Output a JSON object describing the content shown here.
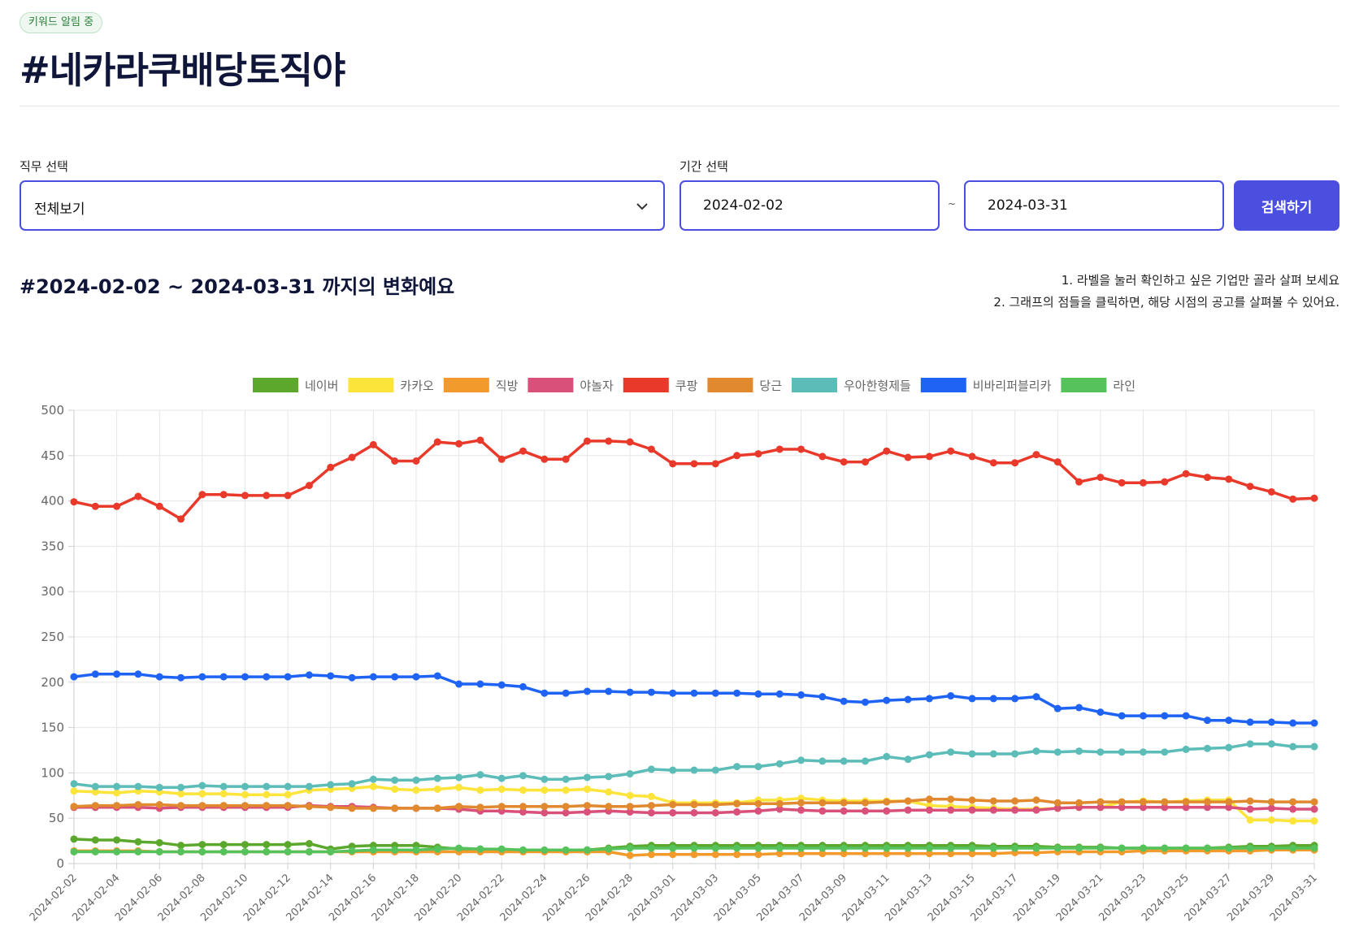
{
  "badge": "키워드 알림 중",
  "title": "#네카라쿠배당토직야",
  "form": {
    "job_label": "직무 선택",
    "job_value": "전체보기",
    "period_label": "기간 선택",
    "start_date": "2024-02-02",
    "end_date": "2024-03-31",
    "separator": "~",
    "search_label": "검색하기"
  },
  "section": {
    "title": "#2024-02-02 ~ 2024-03-31 까지의 변화예요",
    "hint1": "1. 라벨을 눌러 확인하고 싶은 기업만 골라 살펴 보세요",
    "hint2": "2. 그래프의 점들을 클릭하면, 해당 시점의 공고를 살펴볼 수 있어요."
  },
  "chart_data": {
    "type": "line",
    "ylim": [
      0,
      500
    ],
    "yticks": [
      0,
      50,
      100,
      150,
      200,
      250,
      300,
      350,
      400,
      450,
      500
    ],
    "grid": true,
    "legend_position": "top-center",
    "x": [
      "2024-02-02",
      "2024-02-03",
      "2024-02-04",
      "2024-02-05",
      "2024-02-06",
      "2024-02-07",
      "2024-02-08",
      "2024-02-09",
      "2024-02-10",
      "2024-02-11",
      "2024-02-12",
      "2024-02-13",
      "2024-02-14",
      "2024-02-15",
      "2024-02-16",
      "2024-02-17",
      "2024-02-18",
      "2024-02-19",
      "2024-02-20",
      "2024-02-21",
      "2024-02-22",
      "2024-02-23",
      "2024-02-24",
      "2024-02-25",
      "2024-02-26",
      "2024-02-27",
      "2024-02-28",
      "2024-02-29",
      "2024-03-01",
      "2024-03-02",
      "2024-03-03",
      "2024-03-04",
      "2024-03-05",
      "2024-03-06",
      "2024-03-07",
      "2024-03-08",
      "2024-03-09",
      "2024-03-10",
      "2024-03-11",
      "2024-03-12",
      "2024-03-13",
      "2024-03-14",
      "2024-03-15",
      "2024-03-16",
      "2024-03-17",
      "2024-03-18",
      "2024-03-19",
      "2024-03-20",
      "2024-03-21",
      "2024-03-22",
      "2024-03-23",
      "2024-03-24",
      "2024-03-25",
      "2024-03-26",
      "2024-03-27",
      "2024-03-28",
      "2024-03-29",
      "2024-03-30",
      "2024-03-31"
    ],
    "x_tick_labels": [
      "2024-02-02",
      "2024-02-04",
      "2024-02-06",
      "2024-02-08",
      "2024-02-10",
      "2024-02-12",
      "2024-02-14",
      "2024-02-16",
      "2024-02-18",
      "2024-02-20",
      "2024-02-22",
      "2024-02-24",
      "2024-02-26",
      "2024-02-28",
      "2024-03-01",
      "2024-03-03",
      "2024-03-05",
      "2024-03-07",
      "2024-03-09",
      "2024-03-11",
      "2024-03-13",
      "2024-03-15",
      "2024-03-17",
      "2024-03-19",
      "2024-03-21",
      "2024-03-23",
      "2024-03-25",
      "2024-03-27",
      "2024-03-29",
      "2024-03-31"
    ],
    "series": [
      {
        "name": "네이버",
        "color": "#5ba82c",
        "values": [
          27,
          26,
          26,
          24,
          23,
          20,
          21,
          21,
          21,
          21,
          21,
          22,
          16,
          19,
          20,
          20,
          20,
          18,
          16,
          16,
          14,
          14,
          14,
          14,
          15,
          17,
          19,
          20,
          20,
          20,
          20,
          20,
          20,
          20,
          20,
          20,
          20,
          20,
          20,
          20,
          20,
          20,
          20,
          19,
          19,
          19,
          18,
          18,
          18,
          17,
          17,
          17,
          17,
          17,
          18,
          19,
          19,
          20,
          20
        ]
      },
      {
        "name": "카카오",
        "color": "#fce43a",
        "values": [
          80,
          79,
          78,
          80,
          79,
          77,
          77,
          77,
          76,
          76,
          76,
          81,
          82,
          83,
          85,
          82,
          81,
          82,
          84,
          81,
          82,
          81,
          81,
          81,
          82,
          79,
          75,
          74,
          67,
          67,
          67,
          67,
          70,
          70,
          72,
          70,
          69,
          69,
          69,
          69,
          64,
          63,
          62,
          61,
          60,
          60,
          61,
          62,
          62,
          68,
          69,
          68,
          69,
          70,
          70,
          48,
          48,
          47,
          47
        ]
      },
      {
        "name": "직방",
        "color": "#f29b2c",
        "values": [
          14,
          14,
          14,
          14,
          13,
          13,
          13,
          13,
          13,
          13,
          13,
          13,
          13,
          13,
          13,
          13,
          13,
          13,
          13,
          13,
          13,
          13,
          13,
          13,
          13,
          13,
          9,
          10,
          10,
          10,
          10,
          10,
          10,
          11,
          11,
          11,
          11,
          11,
          11,
          11,
          11,
          11,
          11,
          11,
          12,
          12,
          13,
          13,
          13,
          13,
          14,
          14,
          14,
          14,
          14,
          14,
          15,
          15,
          15
        ]
      },
      {
        "name": "야놀자",
        "color": "#d9507a",
        "values": [
          62,
          62,
          62,
          62,
          61,
          62,
          62,
          62,
          62,
          62,
          62,
          64,
          63,
          63,
          62,
          61,
          61,
          61,
          60,
          58,
          58,
          57,
          56,
          56,
          57,
          58,
          57,
          56,
          56,
          56,
          56,
          57,
          58,
          60,
          59,
          58,
          58,
          58,
          58,
          59,
          59,
          59,
          59,
          59,
          59,
          59,
          61,
          62,
          62,
          62,
          62,
          62,
          62,
          62,
          62,
          60,
          61,
          60,
          60
        ]
      },
      {
        "name": "쿠팡",
        "color": "#e8392a",
        "values": [
          399,
          394,
          394,
          405,
          394,
          380,
          407,
          407,
          406,
          406,
          406,
          417,
          437,
          448,
          462,
          444,
          444,
          465,
          463,
          467,
          446,
          455,
          446,
          446,
          466,
          466,
          465,
          457,
          441,
          441,
          441,
          450,
          452,
          457,
          457,
          449,
          443,
          443,
          455,
          448,
          449,
          455,
          449,
          442,
          442,
          451,
          443,
          421,
          426,
          420,
          420,
          421,
          430,
          426,
          424,
          416,
          410,
          402,
          403
        ]
      },
      {
        "name": "당근",
        "color": "#e0892f",
        "values": [
          63,
          64,
          64,
          65,
          65,
          64,
          64,
          64,
          64,
          64,
          64,
          63,
          62,
          61,
          61,
          61,
          61,
          61,
          63,
          62,
          63,
          63,
          63,
          63,
          64,
          63,
          63,
          64,
          65,
          65,
          65,
          66,
          66,
          66,
          67,
          67,
          67,
          67,
          68,
          69,
          71,
          71,
          70,
          69,
          69,
          70,
          67,
          67,
          68,
          68,
          68,
          68,
          68,
          68,
          68,
          69,
          68,
          68,
          68
        ]
      },
      {
        "name": "우아한형제들",
        "color": "#5bbcb8",
        "values": [
          88,
          85,
          85,
          85,
          84,
          84,
          86,
          85,
          85,
          85,
          85,
          85,
          87,
          88,
          93,
          92,
          92,
          94,
          95,
          98,
          94,
          97,
          93,
          93,
          95,
          96,
          99,
          104,
          103,
          103,
          103,
          107,
          107,
          110,
          114,
          113,
          113,
          113,
          118,
          115,
          120,
          123,
          121,
          121,
          121,
          124,
          123,
          124,
          123,
          123,
          123,
          123,
          126,
          127,
          128,
          132,
          132,
          129,
          129
        ]
      },
      {
        "name": "비바리퍼블리카",
        "color": "#1f63f5",
        "values": [
          206,
          209,
          209,
          209,
          206,
          205,
          206,
          206,
          206,
          206,
          206,
          208,
          207,
          205,
          206,
          206,
          206,
          207,
          198,
          198,
          197,
          195,
          188,
          188,
          190,
          190,
          189,
          189,
          188,
          188,
          188,
          188,
          187,
          187,
          186,
          184,
          179,
          178,
          180,
          181,
          182,
          185,
          182,
          182,
          182,
          184,
          171,
          172,
          167,
          163,
          163,
          163,
          163,
          158,
          158,
          156,
          156,
          155,
          155
        ]
      },
      {
        "name": "라인",
        "color": "#55c25c",
        "values": [
          13,
          13,
          13,
          13,
          13,
          13,
          13,
          13,
          13,
          13,
          13,
          13,
          13,
          14,
          15,
          15,
          15,
          16,
          17,
          16,
          16,
          15,
          15,
          15,
          15,
          16,
          17,
          17,
          17,
          17,
          17,
          17,
          17,
          17,
          17,
          17,
          17,
          17,
          17,
          17,
          17,
          17,
          17,
          17,
          17,
          17,
          17,
          17,
          17,
          17,
          17,
          17,
          17,
          17,
          17,
          17,
          17,
          17,
          17
        ]
      }
    ]
  }
}
